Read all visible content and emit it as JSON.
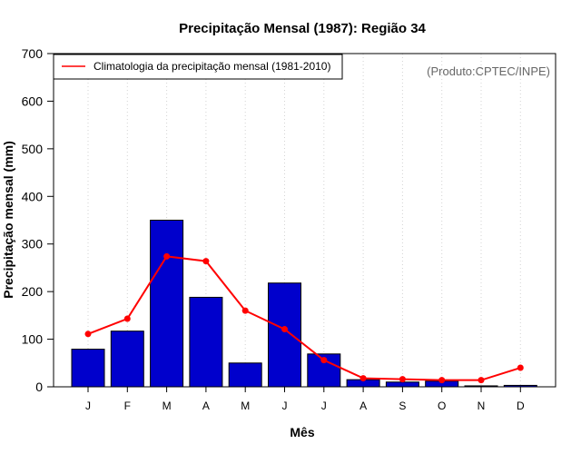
{
  "chart_data": {
    "type": "bar",
    "title": "Precipitação Mensal (1987): Região 34",
    "xlabel": "Mês",
    "ylabel": "Precipitação mensal (mm)",
    "ylim": [
      0,
      700
    ],
    "yticks": [
      0,
      100,
      200,
      300,
      400,
      500,
      600,
      700
    ],
    "grid": "vertical-dotted",
    "categories": [
      "J",
      "F",
      "M",
      "A",
      "M",
      "J",
      "J",
      "A",
      "S",
      "O",
      "N",
      "D"
    ],
    "series": [
      {
        "name": "Precipitação mensal (1987)",
        "kind": "bar",
        "color": "#0000cc",
        "values": [
          79,
          117,
          350,
          188,
          50,
          218,
          69,
          15,
          10,
          12,
          2,
          3
        ]
      },
      {
        "name": "Climatologia da precipitação mensal (1981-2010)",
        "kind": "line",
        "color": "#ff0000",
        "values": [
          111,
          143,
          274,
          264,
          160,
          121,
          56,
          18,
          16,
          14,
          14,
          40
        ]
      }
    ],
    "legend": {
      "position": "top-left",
      "entries": [
        "Climatologia da precipitação mensal (1981-2010)"
      ]
    },
    "annotation": "(Produto:CPTEC/INPE)"
  }
}
